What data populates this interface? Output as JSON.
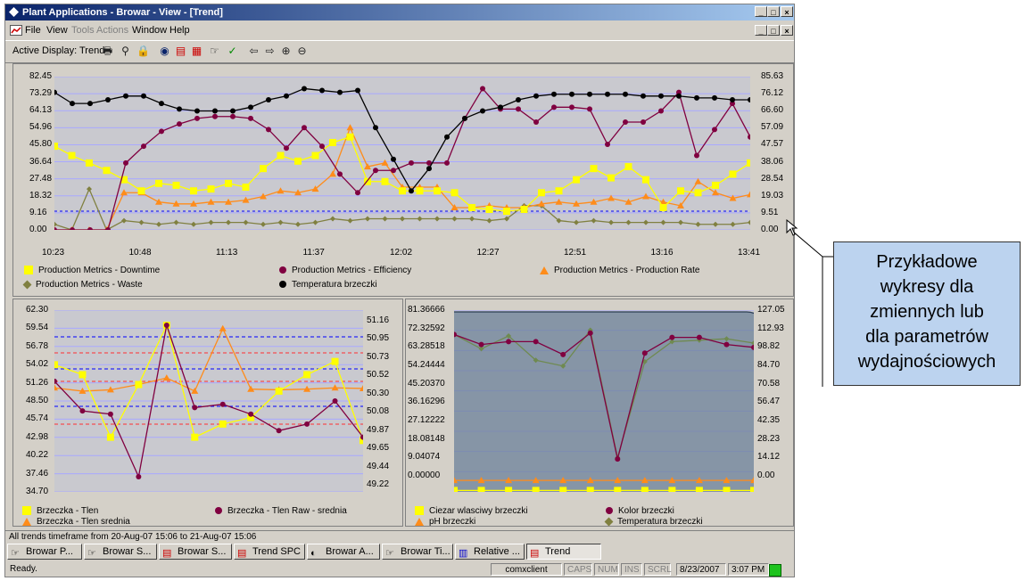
{
  "window": {
    "title": "Plant Applications - Browar - View - [Trend]",
    "min_label": "_",
    "max_label": "□",
    "close_label": "×"
  },
  "menu": {
    "items": [
      {
        "label": "File",
        "enabled": true
      },
      {
        "label": "View",
        "enabled": true
      },
      {
        "label": "Tools",
        "enabled": false
      },
      {
        "label": "Actions",
        "enabled": false
      },
      {
        "label": "Window",
        "enabled": true
      },
      {
        "label": "Help",
        "enabled": true
      }
    ]
  },
  "toolbar": {
    "active_display": "Active Display: Trend",
    "icons": [
      "print-icon",
      "find-icon",
      "lock-icon",
      "globe-icon",
      "chart-icon",
      "chart-grid-icon",
      "hand-icon",
      "check-icon",
      "arrow-left-icon",
      "arrow-right-icon",
      "zoom-in-icon",
      "zoom-out-icon"
    ]
  },
  "charts": {
    "top": {
      "y_left_ticks": [
        "82.45",
        "73.29",
        "64.13",
        "54.96",
        "45.80",
        "36.64",
        "27.48",
        "18.32",
        "9.16",
        "0.00"
      ],
      "y_right_ticks": [
        "85.63",
        "76.12",
        "66.60",
        "57.09",
        "47.57",
        "38.06",
        "28.54",
        "19.03",
        "9.51",
        "0.00"
      ],
      "x_ticks": [
        "10:23",
        "10:48",
        "11:13",
        "11:37",
        "12:02",
        "12:27",
        "12:51",
        "13:16",
        "13:41"
      ],
      "legend": [
        {
          "name": "Production Metrics - Downtime",
          "color": "#ffff00",
          "marker": "square"
        },
        {
          "name": "Production Metrics - Efficiency",
          "color": "#800040",
          "marker": "circle"
        },
        {
          "name": "Production Metrics - Production Rate",
          "color": "#ff8c1a",
          "marker": "triangle"
        },
        {
          "name": "Production Metrics - Waste",
          "color": "#808040",
          "marker": "diamond"
        },
        {
          "name": "Temperatura brzeczki",
          "color": "#000000",
          "marker": "circle"
        }
      ]
    },
    "bottom_left": {
      "y_left_ticks": [
        "62.30",
        "59.54",
        "56.78",
        "54.02",
        "51.26",
        "48.50",
        "45.74",
        "42.98",
        "40.22",
        "37.46",
        "34.70"
      ],
      "y_right_ticks": [
        "51.16",
        "50.95",
        "50.73",
        "50.52",
        "50.30",
        "50.08",
        "49.87",
        "49.65",
        "49.44",
        "49.22"
      ],
      "legend": [
        {
          "name": "Brzeczka - Tlen",
          "color": "#ffff00",
          "marker": "square"
        },
        {
          "name": "Brzeczka - Tlen Raw - srednia",
          "color": "#800040",
          "marker": "circle"
        },
        {
          "name": "Brzeczka - Tlen srednia",
          "color": "#ff8c1a",
          "marker": "triangle"
        }
      ]
    },
    "bottom_right": {
      "y_left_ticks": [
        "81.36666",
        "72.32592",
        "63.28518",
        "54.24444",
        "45.20370",
        "36.16296",
        "27.12222",
        "18.08148",
        "9.04074",
        "0.00000"
      ],
      "y_right_ticks": [
        "127.05",
        "112.93",
        "98.82",
        "84.70",
        "70.58",
        "56.47",
        "42.35",
        "28.23",
        "14.12",
        "0.00"
      ],
      "legend": [
        {
          "name": "Ciezar wlasciwy brzeczki",
          "color": "#ffff00",
          "marker": "square"
        },
        {
          "name": "Kolor brzeczki",
          "color": "#800040",
          "marker": "circle"
        },
        {
          "name": "pH brzeczki",
          "color": "#ff8c1a",
          "marker": "triangle"
        },
        {
          "name": "Temperatura brzeczki",
          "color": "#808040",
          "marker": "diamond"
        }
      ]
    }
  },
  "status": {
    "timeframe": "All trends timeframe from 20-Aug-07 15:06 to 21-Aug-07 15:06",
    "ready": "Ready.",
    "client": "comxclient",
    "caps": "CAPS",
    "num": "NUM",
    "ins": "INS",
    "scrl": "SCRL",
    "date": "8/23/2007",
    "time": "3:07 PM"
  },
  "taskbar": [
    {
      "label": "Browar P...",
      "active": false
    },
    {
      "label": "Browar S...",
      "active": false
    },
    {
      "label": "Browar S...",
      "active": false
    },
    {
      "label": "Trend SPC",
      "active": false
    },
    {
      "label": "Browar A...",
      "active": false
    },
    {
      "label": "Browar Ti...",
      "active": false
    },
    {
      "label": "Relative ...",
      "active": false
    },
    {
      "label": "Trend",
      "active": true
    }
  ],
  "callout": {
    "lines": [
      "Przykładowe",
      "wykresy dla",
      "zmiennych lub",
      "dla parametrów",
      "wydajnościowych"
    ]
  }
}
